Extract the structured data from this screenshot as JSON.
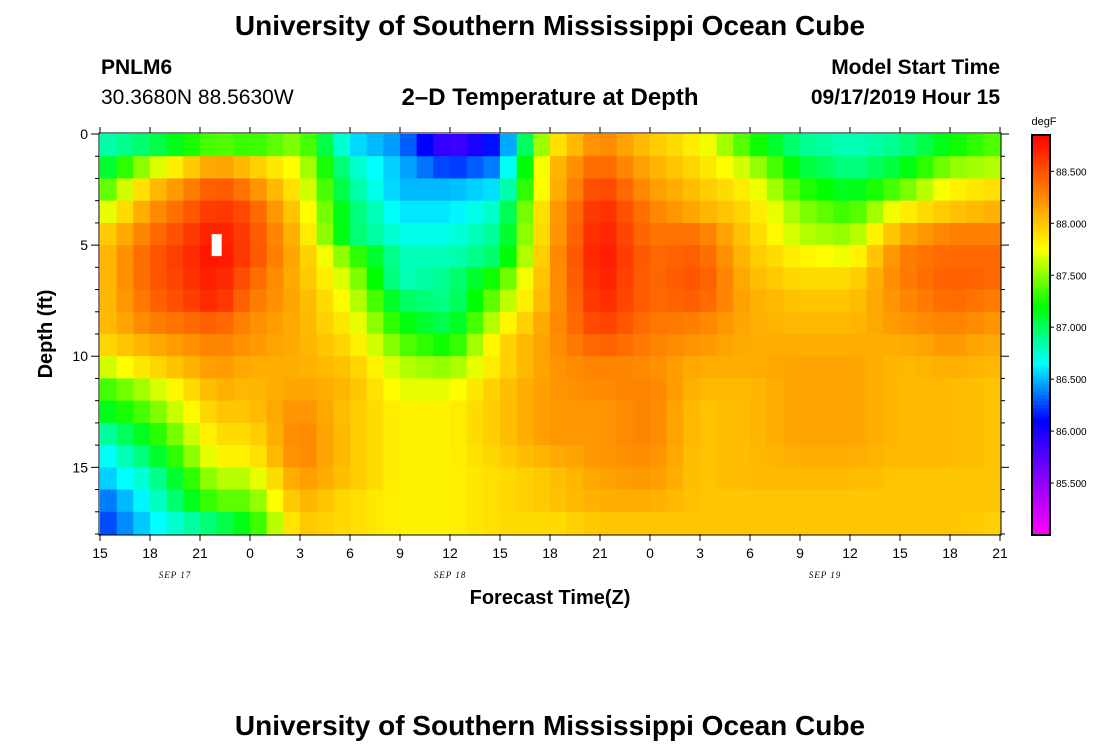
{
  "header": {
    "title": "University of Southern Mississippi Ocean Cube",
    "station": "PNLM6",
    "coords": "30.3680N 88.5630W",
    "chart_title": "2–D Temperature at Depth",
    "model_label": "Model Start Time",
    "model_time": "09/17/2019 Hour 15"
  },
  "footer": {
    "title": "University of Southern Mississippi Ocean Cube"
  },
  "chart_data": {
    "type": "heatmap",
    "title": "2–D Temperature at Depth",
    "xlabel": "Forecast Time(Z)",
    "ylabel": "Depth (ft)",
    "x_range_hours": [
      0,
      54
    ],
    "ylim": [
      0,
      18
    ],
    "y_ticks": [
      0,
      5,
      10,
      15
    ],
    "x_tick_labels": [
      "15",
      "18",
      "21",
      "0",
      "3",
      "6",
      "9",
      "12",
      "15",
      "18",
      "21",
      "0",
      "3",
      "6",
      "9",
      "12",
      "15",
      "18",
      "21"
    ],
    "date_labels": [
      {
        "text": "SEP 17",
        "hour": 4.5
      },
      {
        "text": "SEP 18",
        "hour": 21
      },
      {
        "text": "SEP 19",
        "hour": 43.5
      }
    ],
    "colorbar": {
      "unit": "degF",
      "min": 85.0,
      "max": 88.85,
      "tick_labels": [
        "88.500",
        "88.000",
        "87.500",
        "87.000",
        "86.500",
        "86.000",
        "85.500"
      ],
      "colors": [
        "#ff00ff",
        "#8a00ff",
        "#0000ff",
        "#00ffff",
        "#00ff00",
        "#ffff00",
        "#ff8000",
        "#ff0000"
      ]
    },
    "grid_shape": {
      "time_steps": 54,
      "depth_levels": 18
    },
    "column_profiles": [
      {
        "hour": 0,
        "temps_top_to_bottom": [
          86.8,
          87.0,
          87.3,
          87.6,
          87.9,
          88.0,
          88.0,
          88.0,
          88.0,
          87.9,
          87.6,
          87.3,
          87.1,
          86.8,
          86.6,
          86.5,
          86.3,
          86.2
        ]
      },
      {
        "hour": 3,
        "temps_top_to_bottom": [
          87.0,
          87.6,
          88.0,
          88.2,
          88.35,
          88.45,
          88.45,
          88.4,
          88.3,
          88.1,
          87.9,
          87.6,
          87.4,
          87.2,
          87.0,
          86.8,
          86.7,
          86.6
        ]
      },
      {
        "hour": 7,
        "temps_top_to_bottom": [
          87.4,
          88.2,
          88.5,
          88.65,
          88.75,
          88.8,
          88.75,
          88.7,
          88.45,
          88.3,
          88.2,
          88.1,
          88.0,
          87.9,
          87.8,
          87.6,
          87.4,
          87.0
        ]
      },
      {
        "hour": 9,
        "temps_top_to_bottom": [
          87.3,
          88.0,
          88.3,
          88.5,
          88.55,
          88.55,
          88.45,
          88.35,
          88.25,
          88.2,
          88.1,
          88.05,
          88.0,
          87.9,
          87.8,
          87.6,
          87.4,
          87.2
        ]
      },
      {
        "hour": 12,
        "temps_top_to_bottom": [
          87.5,
          87.7,
          87.8,
          87.9,
          88.0,
          88.05,
          88.05,
          88.1,
          88.1,
          88.1,
          88.1,
          88.15,
          88.25,
          88.3,
          88.3,
          88.2,
          88.1,
          88.0
        ]
      },
      {
        "hour": 15,
        "temps_top_to_bottom": [
          86.6,
          86.8,
          86.9,
          87.0,
          87.0,
          87.4,
          87.6,
          87.7,
          87.8,
          87.9,
          88.0,
          88.05,
          88.0,
          88.0,
          88.0,
          88.0,
          87.9,
          87.9
        ]
      },
      {
        "hour": 18,
        "temps_top_to_bottom": [
          86.4,
          86.5,
          86.5,
          86.6,
          86.7,
          86.8,
          86.8,
          87.0,
          87.2,
          87.4,
          87.6,
          87.7,
          87.8,
          87.8,
          87.8,
          87.8,
          87.8,
          87.8
        ]
      },
      {
        "hour": 21,
        "temps_top_to_bottom": [
          85.8,
          86.2,
          86.5,
          86.6,
          86.7,
          86.8,
          86.9,
          86.9,
          87.0,
          87.2,
          87.5,
          87.7,
          87.8,
          87.8,
          87.8,
          87.8,
          87.8,
          87.8
        ]
      },
      {
        "hour": 24,
        "temps_top_to_bottom": [
          86.2,
          86.4,
          86.6,
          86.8,
          86.9,
          87.0,
          87.3,
          87.5,
          87.7,
          87.9,
          87.9,
          88.0,
          88.0,
          88.0,
          87.95,
          87.9,
          87.9,
          87.9
        ]
      },
      {
        "hour": 27,
        "temps_top_to_bottom": [
          87.8,
          88.0,
          88.0,
          88.1,
          88.1,
          88.15,
          88.15,
          88.15,
          88.2,
          88.2,
          88.2,
          88.2,
          88.2,
          88.2,
          88.1,
          88.0,
          88.0,
          87.9
        ]
      },
      {
        "hour": 30,
        "temps_top_to_bottom": [
          88.3,
          88.45,
          88.6,
          88.7,
          88.75,
          88.78,
          88.75,
          88.7,
          88.6,
          88.45,
          88.3,
          88.25,
          88.2,
          88.2,
          88.2,
          88.15,
          88.1,
          88.0
        ]
      },
      {
        "hour": 33,
        "temps_top_to_bottom": [
          88.0,
          88.1,
          88.2,
          88.3,
          88.35,
          88.4,
          88.4,
          88.4,
          88.35,
          88.3,
          88.25,
          88.3,
          88.3,
          88.3,
          88.25,
          88.2,
          88.1,
          88.0
        ]
      },
      {
        "hour": 36,
        "temps_top_to_bottom": [
          87.8,
          87.9,
          88.0,
          88.1,
          88.35,
          88.45,
          88.5,
          88.45,
          88.3,
          88.2,
          88.1,
          88.05,
          88.0,
          88.0,
          88.0,
          88.0,
          88.0,
          88.0
        ]
      },
      {
        "hour": 39,
        "temps_top_to_bottom": [
          87.3,
          87.6,
          87.8,
          87.9,
          87.95,
          88.0,
          88.05,
          88.1,
          88.1,
          88.1,
          88.1,
          88.05,
          88.05,
          88.05,
          88.05,
          88.05,
          88.0,
          88.0
        ]
      },
      {
        "hour": 42,
        "temps_top_to_bottom": [
          86.9,
          87.1,
          87.3,
          87.5,
          87.6,
          87.8,
          87.9,
          88.0,
          88.05,
          88.1,
          88.15,
          88.15,
          88.15,
          88.15,
          88.1,
          88.05,
          88.0,
          88.0
        ]
      },
      {
        "hour": 45,
        "temps_top_to_bottom": [
          86.8,
          86.9,
          87.1,
          87.3,
          87.5,
          87.7,
          87.9,
          88.0,
          88.05,
          88.1,
          88.15,
          88.15,
          88.15,
          88.15,
          88.1,
          88.05,
          88.0,
          88.0
        ]
      },
      {
        "hour": 48,
        "temps_top_to_bottom": [
          86.9,
          87.1,
          87.4,
          87.8,
          88.1,
          88.3,
          88.3,
          88.25,
          88.2,
          88.1,
          88.05,
          88.05,
          88.05,
          88.05,
          88.05,
          88.0,
          88.0,
          88.0
        ]
      },
      {
        "hour": 51,
        "temps_top_to_bottom": [
          87.2,
          87.5,
          87.8,
          88.0,
          88.3,
          88.4,
          88.45,
          88.4,
          88.3,
          88.2,
          88.1,
          88.05,
          88.05,
          88.05,
          88.05,
          88.0,
          88.0,
          88.0
        ]
      },
      {
        "hour": 54,
        "temps_top_to_bottom": [
          87.4,
          87.6,
          87.9,
          88.1,
          88.3,
          88.4,
          88.4,
          88.3,
          88.2,
          88.1,
          88.05,
          88.0,
          88.0,
          88.0,
          88.0,
          88.0,
          88.0,
          87.95
        ]
      }
    ],
    "warm_spot": {
      "hour": 7,
      "depth": 5,
      "note_value": 88.85
    }
  }
}
